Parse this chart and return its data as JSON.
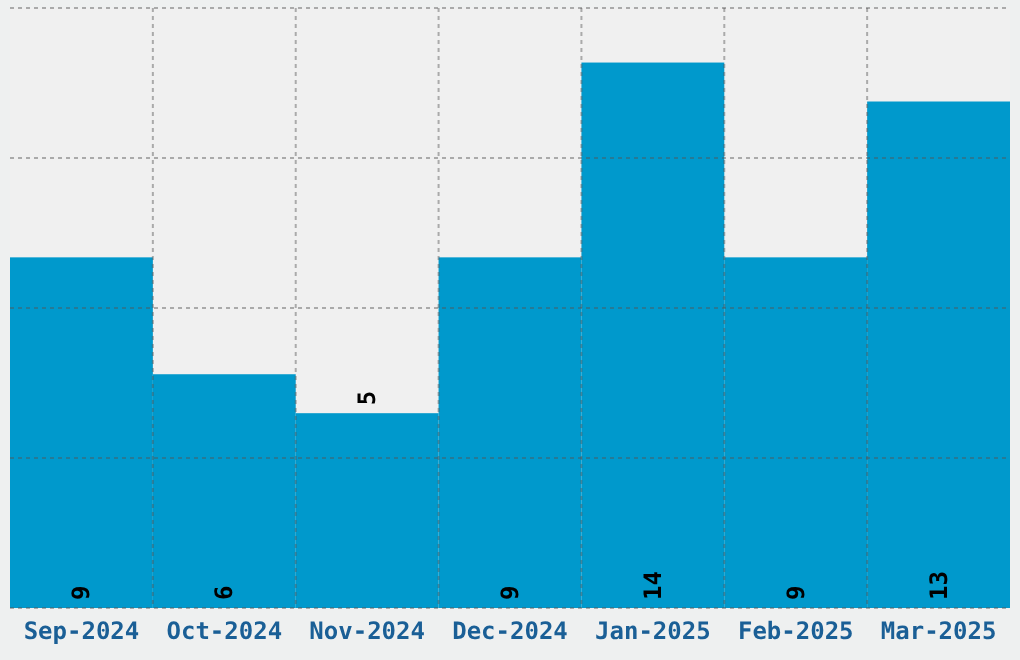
{
  "chart_data": {
    "type": "bar",
    "categories": [
      "Sep-2024",
      "Oct-2024",
      "Nov-2024",
      "Dec-2024",
      "Jan-2025",
      "Feb-2025",
      "Mar-2025"
    ],
    "values": [
      9,
      6,
      5,
      9,
      14,
      9,
      13
    ],
    "color": "#0099cc",
    "data_labels": true,
    "grid": true,
    "tick_labels": "x",
    "ylim": [
      0,
      15.4
    ],
    "yticks": [
      {
        "value": 0,
        "label": null
      },
      {
        "value": 3.85,
        "label": null
      },
      {
        "value": 7.7,
        "label": null
      },
      {
        "value": 11.55,
        "label": null
      },
      {
        "value": 15.4,
        "label": null
      }
    ]
  }
}
